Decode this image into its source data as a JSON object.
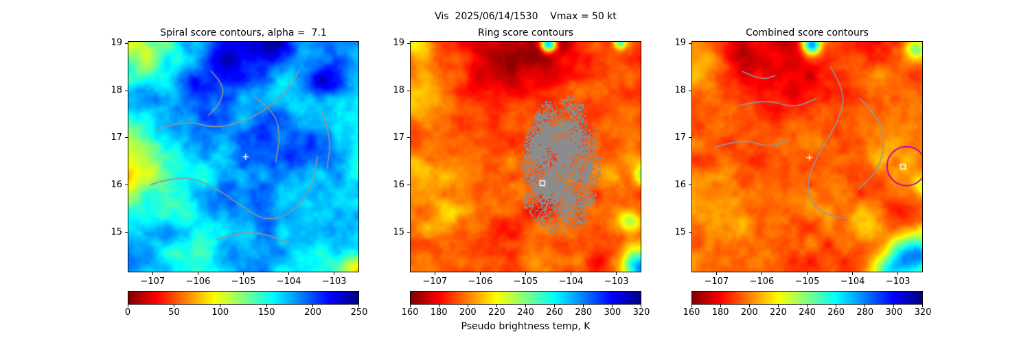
{
  "figure": {
    "suptitle": "Vis  2025/06/14/1530    Vmax = 50 kt",
    "xlabel": "Pseudo brightness temp, K",
    "background": "#ffffff"
  },
  "chart_data": {
    "type": "heatmap",
    "colormap": "jet_r",
    "panels": [
      {
        "id": "spiral",
        "title": "Spiral score contours, alpha =  7.1",
        "xlim": [
          -107.55,
          -102.45
        ],
        "ylim": [
          14.15,
          19.05
        ],
        "xticks": {
          "values": [
            -107,
            -106,
            -105,
            -104,
            -103
          ],
          "labels": [
            "−107",
            "−106",
            "−105",
            "−104",
            "−103"
          ]
        },
        "yticks": {
          "values": [
            15,
            16,
            17,
            18,
            19
          ],
          "labels": [
            "15",
            "16",
            "17",
            "18",
            "19"
          ]
        },
        "colorbar": {
          "vmin": 0,
          "vmax": 250,
          "tick_values": [
            0,
            50,
            100,
            150,
            200,
            250
          ],
          "tick_labels": [
            "0",
            "50",
            "100",
            "150",
            "200",
            "250"
          ]
        },
        "contour_color": "#9b9288",
        "contours": [
          [
            [
              -105.71,
              18.41
            ],
            [
              -105.41,
              18.12
            ],
            [
              -105.51,
              17.73
            ],
            [
              -105.77,
              17.48
            ]
          ],
          [
            [
              -106.89,
              17.19
            ],
            [
              -106.28,
              17.38
            ],
            [
              -105.61,
              17.19
            ],
            [
              -104.9,
              17.38
            ],
            [
              -104.39,
              17.68
            ],
            [
              -103.98,
              18.07
            ],
            [
              -103.78,
              18.41
            ]
          ],
          [
            [
              -104.75,
              17.87
            ],
            [
              -104.34,
              17.58
            ],
            [
              -104.18,
              17.09
            ],
            [
              -104.29,
              16.5
            ]
          ],
          [
            [
              -107.04,
              16.01
            ],
            [
              -106.43,
              16.21
            ],
            [
              -105.71,
              16.01
            ],
            [
              -105.0,
              15.52
            ],
            [
              -104.49,
              15.23
            ],
            [
              -103.88,
              15.42
            ],
            [
              -103.47,
              16.01
            ],
            [
              -103.37,
              16.6
            ]
          ],
          [
            [
              -105.61,
              14.84
            ],
            [
              -105.0,
              15.03
            ],
            [
              -104.39,
              14.93
            ],
            [
              -103.98,
              14.74
            ]
          ],
          [
            [
              -103.27,
              17.58
            ],
            [
              -103.06,
              16.99
            ],
            [
              -103.16,
              16.36
            ]
          ]
        ],
        "markers": [
          {
            "type": "plus",
            "x": -104.95,
            "y": 16.6,
            "color": "#ffffff"
          }
        ],
        "texture": {
          "seed": 11,
          "base": 0.33,
          "amp": 0.13,
          "detail": 0.26,
          "scale": 3.0,
          "features": [
            {
              "u": 0.44,
              "v": 0.06,
              "s": 0.13,
              "dt": -0.3
            },
            {
              "u": 0.63,
              "v": 0.03,
              "s": 0.09,
              "dt": -0.22
            },
            {
              "u": 0.3,
              "v": 0.2,
              "s": 0.09,
              "dt": -0.14
            },
            {
              "u": 0.86,
              "v": 0.16,
              "s": 0.1,
              "dt": -0.16
            },
            {
              "u": 0.52,
              "v": 0.66,
              "s": 0.16,
              "dt": -0.12
            },
            {
              "u": 0.72,
              "v": 0.42,
              "s": 0.2,
              "dt": -0.1
            },
            {
              "u": -0.03,
              "v": 0.52,
              "s": 0.18,
              "dt": 0.3
            },
            {
              "u": 0.04,
              "v": 0.04,
              "s": 0.11,
              "dt": 0.22
            },
            {
              "u": 1.0,
              "v": 1.0,
              "s": 0.11,
              "dt": 0.38
            },
            {
              "u": 0.25,
              "v": 0.97,
              "s": 0.1,
              "dt": 0.1
            },
            {
              "u": 1.02,
              "v": 0.55,
              "s": 0.07,
              "dt": 0.12
            }
          ]
        }
      },
      {
        "id": "ring",
        "title": "Ring score contours",
        "xlim": [
          -107.55,
          -102.45
        ],
        "ylim": [
          14.15,
          19.05
        ],
        "xticks": {
          "values": [
            -107,
            -106,
            -105,
            -104,
            -103
          ],
          "labels": [
            "−107",
            "−106",
            "−105",
            "−104",
            "−103"
          ]
        },
        "yticks": {
          "values": [
            15,
            16,
            17,
            18,
            19
          ],
          "labels": [
            "15",
            "16",
            "17",
            "18",
            "19"
          ]
        },
        "colorbar": {
          "vmin": 160,
          "vmax": 320,
          "tick_values": [
            160,
            180,
            200,
            220,
            240,
            260,
            280,
            300,
            320
          ],
          "tick_labels": [
            "160",
            "180",
            "200",
            "220",
            "240",
            "260",
            "280",
            "300",
            "320"
          ]
        },
        "mask": {
          "color": "#8c8c8c",
          "cx": -104.28,
          "cy": 16.45,
          "rx": 0.95,
          "ry": 1.45,
          "seed": 7
        },
        "markers": [
          {
            "type": "square",
            "x": -104.63,
            "y": 16.04,
            "color": "#ffffff"
          }
        ],
        "texture": {
          "seed": 21,
          "base": 0.8,
          "amp": 0.09,
          "detail": 0.18,
          "scale": 3.4,
          "features": [
            {
              "u": 0.4,
              "v": 0.08,
              "s": 0.15,
              "dt": 0.14
            },
            {
              "u": 0.62,
              "v": 0.03,
              "s": 0.1,
              "dt": 0.12
            },
            {
              "u": 0.6,
              "v": 0.01,
              "s": 0.035,
              "dt": -0.6
            },
            {
              "u": 0.91,
              "v": 0.0,
              "s": 0.03,
              "dt": -0.4
            },
            {
              "u": 0.02,
              "v": 0.02,
              "s": 0.08,
              "dt": -0.16
            },
            {
              "u": 0.04,
              "v": 0.25,
              "s": 0.1,
              "dt": -0.12
            },
            {
              "u": 1.0,
              "v": 0.98,
              "s": 0.08,
              "dt": -0.55
            },
            {
              "u": 0.95,
              "v": 0.78,
              "s": 0.05,
              "dt": -0.25
            },
            {
              "u": 1.02,
              "v": 0.58,
              "s": 0.045,
              "dt": -0.35
            },
            {
              "u": 0.18,
              "v": 0.75,
              "s": 0.12,
              "dt": -0.1
            },
            {
              "u": 0.6,
              "v": 0.95,
              "s": 0.12,
              "dt": -0.08
            },
            {
              "u": 0.03,
              "v": 0.55,
              "s": 0.07,
              "dt": -0.12
            }
          ]
        }
      },
      {
        "id": "combined",
        "title": "Combined score contours",
        "xlim": [
          -107.55,
          -102.45
        ],
        "ylim": [
          14.15,
          19.05
        ],
        "xticks": {
          "values": [
            -107,
            -106,
            -105,
            -104,
            -103
          ],
          "labels": [
            "−107",
            "−106",
            "−105",
            "−104",
            "−103"
          ]
        },
        "yticks": {
          "values": [
            15,
            16,
            17,
            18,
            19
          ],
          "labels": [
            "15",
            "16",
            "17",
            "18",
            "19"
          ]
        },
        "colorbar": {
          "vmin": 160,
          "vmax": 320,
          "tick_values": [
            160,
            180,
            200,
            220,
            240,
            260,
            280,
            300,
            320
          ],
          "tick_labels": [
            "160",
            "180",
            "200",
            "220",
            "240",
            "260",
            "280",
            "300",
            "320"
          ]
        },
        "contour_color": "#8d9aa6",
        "contours": [
          [
            [
              -106.53,
              17.68
            ],
            [
              -105.92,
              17.83
            ],
            [
              -105.31,
              17.63
            ],
            [
              -104.8,
              17.83
            ]
          ],
          [
            [
              -104.49,
              18.51
            ],
            [
              -104.13,
              17.97
            ],
            [
              -104.34,
              17.29
            ],
            [
              -104.8,
              16.6
            ],
            [
              -105.05,
              15.91
            ],
            [
              -104.75,
              15.42
            ],
            [
              -104.13,
              15.28
            ]
          ],
          [
            [
              -107.04,
              16.8
            ],
            [
              -106.43,
              16.99
            ],
            [
              -105.87,
              16.8
            ],
            [
              -105.41,
              16.94
            ]
          ],
          [
            [
              -103.83,
              17.83
            ],
            [
              -103.42,
              17.43
            ],
            [
              -103.27,
              16.85
            ],
            [
              -103.47,
              16.26
            ],
            [
              -103.88,
              15.91
            ]
          ],
          [
            [
              -106.43,
              18.41
            ],
            [
              -106.02,
              18.22
            ],
            [
              -105.71,
              18.32
            ]
          ]
        ],
        "markers": [
          {
            "type": "plus",
            "x": -104.95,
            "y": 16.58,
            "color": "#ffffff"
          },
          {
            "type": "square",
            "x": -102.89,
            "y": 16.39,
            "color": "#ffffff"
          },
          {
            "type": "circle",
            "x": -102.81,
            "y": 16.4,
            "r": 0.43,
            "color": "#c000c0"
          }
        ],
        "texture": {
          "seed": 31,
          "base": 0.8,
          "amp": 0.09,
          "detail": 0.18,
          "scale": 3.4,
          "features": [
            {
              "u": 0.42,
              "v": 0.08,
              "s": 0.15,
              "dt": 0.14
            },
            {
              "u": 0.2,
              "v": 0.05,
              "s": 0.1,
              "dt": 0.1
            },
            {
              "u": 0.52,
              "v": 0.01,
              "s": 0.04,
              "dt": -0.6
            },
            {
              "u": 0.97,
              "v": 0.03,
              "s": 0.04,
              "dt": -0.3
            },
            {
              "u": 0.05,
              "v": 0.1,
              "s": 0.09,
              "dt": -0.1
            },
            {
              "u": 0.97,
              "v": 0.93,
              "s": 0.1,
              "dt": -0.6
            },
            {
              "u": 0.85,
              "v": 1.0,
              "s": 0.08,
              "dt": -0.35
            },
            {
              "u": 1.02,
              "v": 0.62,
              "s": 0.05,
              "dt": -0.3
            },
            {
              "u": 0.88,
              "v": 0.45,
              "s": 0.13,
              "dt": -0.12
            },
            {
              "u": 0.2,
              "v": 0.7,
              "s": 0.12,
              "dt": -0.08
            },
            {
              "u": 0.75,
              "v": 0.8,
              "s": 0.1,
              "dt": -0.15
            }
          ]
        }
      }
    ]
  }
}
